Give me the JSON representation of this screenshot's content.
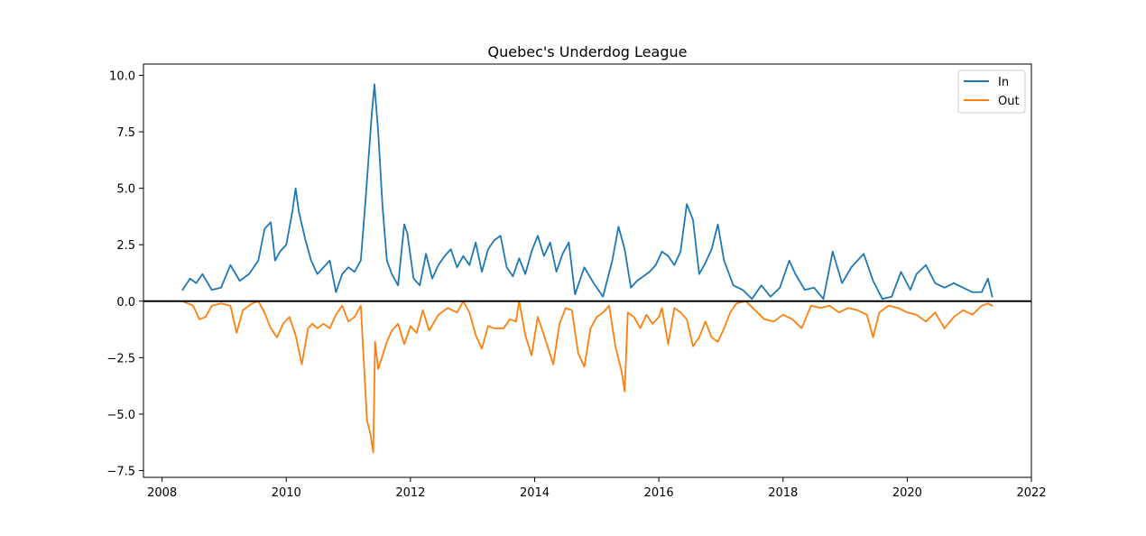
{
  "chart_data": {
    "type": "line",
    "title": "Quebec's Underdog League",
    "xlabel": "",
    "ylabel": "",
    "xlim": [
      2007.7,
      2022.0
    ],
    "ylim": [
      -7.8,
      10.5
    ],
    "x_ticks": [
      2008,
      2010,
      2012,
      2014,
      2016,
      2018,
      2020,
      2022
    ],
    "x_tick_labels": [
      "2008",
      "2010",
      "2012",
      "2014",
      "2016",
      "2018",
      "2020",
      "2022"
    ],
    "y_ticks": [
      -7.5,
      -5.0,
      -2.5,
      0.0,
      2.5,
      5.0,
      7.5,
      10.0
    ],
    "y_tick_labels": [
      "−7.5",
      "−5.0",
      "−2.5",
      "0.0",
      "2.5",
      "5.0",
      "7.5",
      "10.0"
    ],
    "grid": false,
    "legend_position": "top-right",
    "zero_line": true,
    "series": [
      {
        "name": "In",
        "color": "#1f77b4",
        "x": [
          2008.33,
          2008.45,
          2008.55,
          2008.65,
          2008.8,
          2008.95,
          2009.1,
          2009.25,
          2009.4,
          2009.55,
          2009.65,
          2009.75,
          2009.82,
          2009.9,
          2010.0,
          2010.1,
          2010.15,
          2010.2,
          2010.3,
          2010.4,
          2010.5,
          2010.6,
          2010.7,
          2010.8,
          2010.9,
          2011.0,
          2011.1,
          2011.2,
          2011.28,
          2011.33,
          2011.38,
          2011.42,
          2011.48,
          2011.55,
          2011.62,
          2011.7,
          2011.8,
          2011.9,
          2011.95,
          2012.05,
          2012.15,
          2012.25,
          2012.35,
          2012.45,
          2012.55,
          2012.65,
          2012.75,
          2012.85,
          2012.95,
          2013.05,
          2013.15,
          2013.25,
          2013.35,
          2013.45,
          2013.55,
          2013.65,
          2013.75,
          2013.85,
          2013.95,
          2014.05,
          2014.15,
          2014.25,
          2014.35,
          2014.45,
          2014.55,
          2014.65,
          2014.8,
          2014.95,
          2015.1,
          2015.25,
          2015.35,
          2015.45,
          2015.55,
          2015.65,
          2015.75,
          2015.85,
          2015.95,
          2016.05,
          2016.15,
          2016.25,
          2016.35,
          2016.45,
          2016.55,
          2016.65,
          2016.75,
          2016.85,
          2016.95,
          2017.05,
          2017.2,
          2017.35,
          2017.5,
          2017.65,
          2017.8,
          2017.95,
          2018.1,
          2018.2,
          2018.35,
          2018.5,
          2018.65,
          2018.8,
          2018.95,
          2019.1,
          2019.2,
          2019.3,
          2019.45,
          2019.6,
          2019.75,
          2019.9,
          2020.05,
          2020.15,
          2020.3,
          2020.45,
          2020.6,
          2020.75,
          2020.9,
          2021.05,
          2021.2,
          2021.3,
          2021.37
        ],
        "y": [
          0.5,
          1.0,
          0.8,
          1.2,
          0.5,
          0.6,
          1.6,
          0.9,
          1.2,
          1.8,
          3.2,
          3.5,
          1.8,
          2.2,
          2.5,
          4.0,
          5.0,
          4.0,
          2.8,
          1.8,
          1.2,
          1.5,
          1.8,
          0.4,
          1.2,
          1.5,
          1.3,
          1.8,
          4.6,
          6.5,
          8.4,
          9.6,
          7.5,
          4.2,
          1.8,
          1.2,
          0.7,
          3.4,
          3.0,
          1.0,
          0.7,
          2.1,
          1.0,
          1.6,
          2.0,
          2.3,
          1.5,
          2.0,
          1.6,
          2.6,
          1.3,
          2.3,
          2.7,
          2.9,
          1.5,
          1.1,
          1.9,
          1.2,
          2.2,
          2.9,
          2.0,
          2.6,
          1.3,
          2.1,
          2.6,
          0.3,
          1.5,
          0.8,
          0.2,
          1.8,
          3.3,
          2.3,
          0.6,
          0.9,
          1.1,
          1.3,
          1.6,
          2.2,
          2.0,
          1.6,
          2.2,
          4.3,
          3.6,
          1.2,
          1.7,
          2.3,
          3.4,
          1.8,
          0.7,
          0.5,
          0.1,
          0.7,
          0.2,
          0.6,
          1.8,
          1.2,
          0.5,
          0.6,
          0.1,
          2.2,
          0.8,
          1.5,
          1.8,
          2.1,
          0.9,
          0.1,
          0.2,
          1.3,
          0.5,
          1.2,
          1.6,
          0.8,
          0.6,
          0.8,
          0.6,
          0.4,
          0.4,
          1.0,
          0.2
        ]
      },
      {
        "name": "Out",
        "color": "#ff7f0e",
        "x": [
          2008.33,
          2008.5,
          2008.6,
          2008.7,
          2008.8,
          2008.95,
          2009.1,
          2009.2,
          2009.3,
          2009.45,
          2009.55,
          2009.65,
          2009.75,
          2009.85,
          2009.95,
          2010.05,
          2010.15,
          2010.25,
          2010.35,
          2010.42,
          2010.5,
          2010.6,
          2010.7,
          2010.8,
          2010.9,
          2011.0,
          2011.1,
          2011.2,
          2011.3,
          2011.35,
          2011.4,
          2011.43,
          2011.48,
          2011.55,
          2011.62,
          2011.7,
          2011.8,
          2011.9,
          2012.0,
          2012.1,
          2012.2,
          2012.3,
          2012.45,
          2012.6,
          2012.75,
          2012.85,
          2012.95,
          2013.05,
          2013.15,
          2013.25,
          2013.35,
          2013.5,
          2013.6,
          2013.7,
          2013.75,
          2013.85,
          2013.95,
          2014.05,
          2014.15,
          2014.3,
          2014.4,
          2014.5,
          2014.6,
          2014.7,
          2014.8,
          2014.9,
          2015.0,
          2015.1,
          2015.2,
          2015.3,
          2015.4,
          2015.45,
          2015.5,
          2015.6,
          2015.7,
          2015.8,
          2015.9,
          2016.0,
          2016.05,
          2016.15,
          2016.25,
          2016.35,
          2016.45,
          2016.55,
          2016.65,
          2016.75,
          2016.85,
          2016.95,
          2017.05,
          2017.15,
          2017.25,
          2017.4,
          2017.55,
          2017.7,
          2017.85,
          2018.0,
          2018.15,
          2018.3,
          2018.45,
          2018.6,
          2018.75,
          2018.9,
          2019.05,
          2019.2,
          2019.35,
          2019.45,
          2019.55,
          2019.7,
          2019.85,
          2020.0,
          2020.15,
          2020.3,
          2020.45,
          2020.6,
          2020.75,
          2020.9,
          2021.05,
          2021.2,
          2021.3,
          2021.37
        ],
        "y": [
          0.0,
          -0.2,
          -0.8,
          -0.7,
          -0.2,
          -0.1,
          -0.2,
          -1.4,
          -0.4,
          -0.1,
          0.0,
          -0.5,
          -1.2,
          -1.6,
          -1.0,
          -0.7,
          -1.5,
          -2.8,
          -1.2,
          -1.0,
          -1.2,
          -1.0,
          -1.2,
          -0.6,
          -0.2,
          -0.9,
          -0.7,
          -0.2,
          -5.3,
          -5.8,
          -6.7,
          -1.8,
          -3.0,
          -2.4,
          -1.8,
          -1.3,
          -1.0,
          -1.9,
          -1.1,
          -1.4,
          -0.4,
          -1.3,
          -0.6,
          -0.3,
          -0.5,
          0.0,
          -0.5,
          -1.5,
          -2.1,
          -1.1,
          -1.2,
          -1.2,
          -0.8,
          -0.9,
          0.0,
          -1.5,
          -2.4,
          -0.7,
          -1.5,
          -2.8,
          -1.0,
          -0.3,
          -0.4,
          -2.3,
          -2.9,
          -1.2,
          -0.7,
          -0.5,
          -0.2,
          -2.0,
          -3.1,
          -4.0,
          -0.5,
          -0.7,
          -1.2,
          -0.6,
          -1.0,
          -0.7,
          -0.3,
          -1.9,
          -0.3,
          -0.5,
          -0.8,
          -2.0,
          -1.6,
          -0.9,
          -1.6,
          -1.8,
          -1.2,
          -0.5,
          -0.1,
          0.0,
          -0.4,
          -0.8,
          -0.9,
          -0.6,
          -0.8,
          -1.2,
          -0.2,
          -0.3,
          -0.2,
          -0.5,
          -0.3,
          -0.4,
          -0.6,
          -1.6,
          -0.5,
          -0.2,
          -0.3,
          -0.5,
          -0.6,
          -0.9,
          -0.5,
          -1.2,
          -0.7,
          -0.4,
          -0.6,
          -0.2,
          -0.1,
          -0.2
        ]
      }
    ]
  }
}
